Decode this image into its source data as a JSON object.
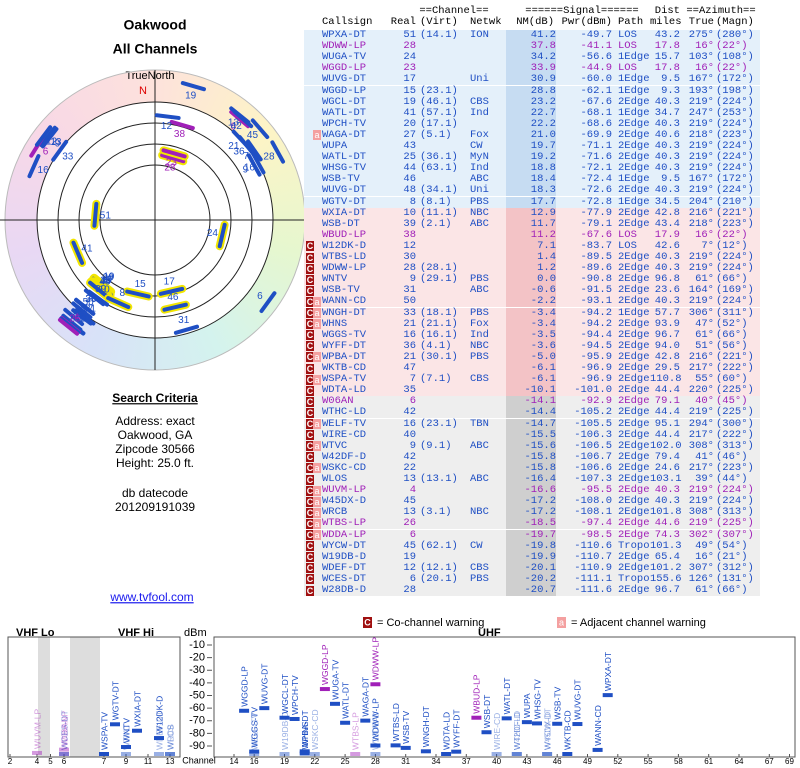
{
  "header": {
    "title": "Oakwood",
    "subtitle": "All Channels"
  },
  "radar": {
    "north_label": "TrueNorth",
    "north": "N"
  },
  "criteria": {
    "title": "Search Criteria",
    "lines": [
      "Address: exact",
      "Oakwood, GA",
      "Zipcode 30566",
      "Height: 25.0 ft."
    ],
    "datecode_label": "db datecode",
    "datecode": "201209191039"
  },
  "link": "www.tvfool.com",
  "table": {
    "groups": {
      "channel": "==Channel==",
      "signal": "======Signal======",
      "dist": "Dist",
      "azimuth": "==Azimuth=="
    },
    "columns": {
      "callsign": "Callsign",
      "real": "Real",
      "virt": "(Virt)",
      "netwk": "Netwk",
      "nm": "NM(dB)",
      "pwr": "Pwr(dBm)",
      "path": "Path",
      "dist": "miles",
      "true": "True",
      "magn": "(Magn)"
    },
    "rows": [
      {
        "callsign": "WPXA-DT",
        "real": 51,
        "virt": "(14.1)",
        "netwk": "ION",
        "nm": "41.2",
        "pwr": "-49.7",
        "path": "LOS",
        "dist": "43.2",
        "true": "275°",
        "magn": "(280°)",
        "color": "#1f4fc4"
      },
      {
        "callsign": "WDWW-LP",
        "real": 28,
        "nm": "37.8",
        "pwr": "-41.1",
        "path": "LOS",
        "dist": "17.8",
        "true": "16°",
        "magn": "(22°)",
        "color": "#a020b8"
      },
      {
        "callsign": "WUGA-TV",
        "real": 24,
        "nm": "34.2",
        "pwr": "-56.6",
        "path": "1Edge",
        "dist": "15.7",
        "true": "103°",
        "magn": "(108°)",
        "color": "#1f4fc4"
      },
      {
        "callsign": "WGGD-LP",
        "real": 23,
        "nm": "33.9",
        "pwr": "-44.9",
        "path": "LOS",
        "dist": "17.8",
        "true": "16°",
        "magn": "(22°)",
        "color": "#a020b8"
      },
      {
        "callsign": "WUVG-DT",
        "real": 17,
        "netwk": "Uni",
        "nm": "30.9",
        "pwr": "-60.0",
        "path": "1Edge",
        "dist": "9.5",
        "true": "167°",
        "magn": "(172°)",
        "color": "#1f4fc4"
      },
      {
        "callsign": "WGGD-LP",
        "real": 15,
        "virt": "(23.1)",
        "nm": "28.8",
        "pwr": "-62.1",
        "path": "1Edge",
        "dist": "9.3",
        "true": "193°",
        "magn": "(198°)",
        "color": "#1f4fc4"
      },
      {
        "callsign": "WGCL-DT",
        "real": 19,
        "virt": "(46.1)",
        "netwk": "CBS",
        "nm": "23.2",
        "pwr": "-67.6",
        "path": "2Edge",
        "dist": "40.3",
        "true": "219°",
        "magn": "(224°)",
        "color": "#1f4fc4"
      },
      {
        "callsign": "WATL-DT",
        "real": 41,
        "virt": "(57.1)",
        "netwk": "Ind",
        "nm": "22.7",
        "pwr": "-68.1",
        "path": "1Edge",
        "dist": "34.7",
        "true": "247°",
        "magn": "(253°)",
        "color": "#1f4fc4"
      },
      {
        "callsign": "WPCH-TV",
        "real": 20,
        "virt": "(17.1)",
        "nm": "22.2",
        "pwr": "-68.6",
        "path": "2Edge",
        "dist": "40.3",
        "true": "219°",
        "magn": "(224°)",
        "color": "#1f4fc4"
      },
      {
        "adj": "a",
        "callsign": "WAGA-DT",
        "real": 27,
        "virt": "(5.1)",
        "netwk": "Fox",
        "nm": "21.0",
        "pwr": "-69.9",
        "path": "2Edge",
        "dist": "40.6",
        "true": "218°",
        "magn": "(223°)",
        "color": "#1f4fc4"
      },
      {
        "callsign": "WUPA",
        "real": 43,
        "netwk": "CW",
        "nm": "19.7",
        "pwr": "-71.1",
        "path": "2Edge",
        "dist": "40.3",
        "true": "219°",
        "magn": "(224°)",
        "color": "#1f4fc4"
      },
      {
        "callsign": "WATL-DT",
        "real": 25,
        "virt": "(36.1)",
        "netwk": "MyN",
        "nm": "19.2",
        "pwr": "-71.6",
        "path": "2Edge",
        "dist": "40.3",
        "true": "219°",
        "magn": "(224°)",
        "color": "#1f4fc4"
      },
      {
        "callsign": "WHSG-TV",
        "real": 44,
        "virt": "(63.1)",
        "netwk": "Ind",
        "nm": "18.8",
        "pwr": "-72.1",
        "path": "2Edge",
        "dist": "40.3",
        "true": "219°",
        "magn": "(224°)",
        "color": "#1f4fc4"
      },
      {
        "callsign": "WSB-TV",
        "real": 46,
        "netwk": "ABC",
        "nm": "18.4",
        "pwr": "-72.4",
        "path": "1Edge",
        "dist": "9.5",
        "true": "167°",
        "magn": "(172°)",
        "color": "#1f4fc4"
      },
      {
        "callsign": "WUVG-DT",
        "real": 48,
        "virt": "(34.1)",
        "netwk": "Uni",
        "nm": "18.3",
        "pwr": "-72.6",
        "path": "2Edge",
        "dist": "40.3",
        "true": "219°",
        "magn": "(224°)",
        "color": "#1f4fc4"
      },
      {
        "callsign": "WGTV-DT",
        "real": 8,
        "virt": "(8.1)",
        "netwk": "PBS",
        "nm": "17.7",
        "pwr": "-72.8",
        "path": "1Edge",
        "dist": "34.5",
        "true": "204°",
        "magn": "(210°)",
        "color": "#1f4fc4"
      },
      {
        "callsign": "WXIA-DT",
        "real": 10,
        "virt": "(11.1)",
        "netwk": "NBC",
        "nm": "12.9",
        "pwr": "-77.9",
        "path": "2Edge",
        "dist": "42.8",
        "true": "216°",
        "magn": "(221°)",
        "color": "#1f4fc4"
      },
      {
        "callsign": "WSB-DT",
        "real": 39,
        "virt": "(2.1)",
        "netwk": "ABC",
        "nm": "11.7",
        "pwr": "-79.1",
        "path": "2Edge",
        "dist": "43.4",
        "true": "218°",
        "magn": "(223°)",
        "color": "#1f4fc4"
      },
      {
        "callsign": "WBUD-LP",
        "real": 38,
        "nm": "11.2",
        "pwr": "-67.6",
        "path": "LOS",
        "dist": "17.9",
        "true": "16°",
        "magn": "(22°)",
        "color": "#a020b8"
      },
      {
        "co": "C",
        "callsign": "W12DK-D",
        "real": 12,
        "nm": "7.1",
        "pwr": "-83.7",
        "path": "LOS",
        "dist": "42.6",
        "true": "7°",
        "magn": "(12°)",
        "color": "#1f4fc4"
      },
      {
        "co": "C",
        "callsign": "WTBS-LD",
        "real": 30,
        "nm": "1.4",
        "pwr": "-89.5",
        "path": "2Edge",
        "dist": "40.3",
        "true": "219°",
        "magn": "(224°)",
        "color": "#1f4fc4"
      },
      {
        "co": "C",
        "callsign": "WDWW-LP",
        "real": 28,
        "virt": "(28.1)",
        "nm": "1.2",
        "pwr": "-89.6",
        "path": "2Edge",
        "dist": "40.3",
        "true": "219°",
        "magn": "(224°)",
        "color": "#1f4fc4"
      },
      {
        "co": "C",
        "callsign": "WNTV",
        "real": 9,
        "virt": "(29.1)",
        "netwk": "PBS",
        "nm": "0.0",
        "pwr": "-90.8",
        "path": "2Edge",
        "dist": "96.8",
        "true": "61°",
        "magn": "(66°)",
        "color": "#1f4fc4"
      },
      {
        "co": "C",
        "callsign": "WSB-TV",
        "real": 31,
        "netwk": "ABC",
        "nm": "-0.6",
        "pwr": "-91.5",
        "path": "2Edge",
        "dist": "23.6",
        "true": "164°",
        "magn": "(169°)",
        "color": "#1f4fc4"
      },
      {
        "adj": "a",
        "co": "C",
        "callsign": "WANN-CD",
        "real": 50,
        "nm": "-2.2",
        "pwr": "-93.1",
        "path": "2Edge",
        "dist": "40.3",
        "true": "219°",
        "magn": "(224°)",
        "color": "#1f4fc4"
      },
      {
        "adj": "a",
        "co": "C",
        "callsign": "WNGH-DT",
        "real": 33,
        "virt": "(18.1)",
        "netwk": "PBS",
        "nm": "-3.4",
        "pwr": "-94.2",
        "path": "1Edge",
        "dist": "57.7",
        "true": "306°",
        "magn": "(311°)",
        "color": "#1f4fc4"
      },
      {
        "adj": "a",
        "co": "C",
        "callsign": "WHNS",
        "real": 21,
        "virt": "(21.1)",
        "netwk": "Fox",
        "nm": "-3.4",
        "pwr": "-94.2",
        "path": "2Edge",
        "dist": "93.9",
        "true": "47°",
        "magn": "(52°)",
        "color": "#1f4fc4"
      },
      {
        "co": "C",
        "callsign": "WGGS-TV",
        "real": 16,
        "virt": "(16.1)",
        "netwk": "Ind",
        "nm": "-3.5",
        "pwr": "-94.4",
        "path": "2Edge",
        "dist": "96.7",
        "true": "61°",
        "magn": "(66°)",
        "color": "#1f4fc4"
      },
      {
        "co": "C",
        "callsign": "WYFF-DT",
        "real": 36,
        "virt": "(4.1)",
        "netwk": "NBC",
        "nm": "-3.6",
        "pwr": "-94.5",
        "path": "2Edge",
        "dist": "94.0",
        "true": "51°",
        "magn": "(56°)",
        "color": "#1f4fc4"
      },
      {
        "adj": "a",
        "co": "C",
        "callsign": "WPBA-DT",
        "real": 21,
        "virt": "(30.1)",
        "netwk": "PBS",
        "nm": "-5.0",
        "pwr": "-95.9",
        "path": "2Edge",
        "dist": "42.8",
        "true": "216°",
        "magn": "(221°)",
        "color": "#1f4fc4"
      },
      {
        "co": "C",
        "callsign": "WKTB-CD",
        "real": 47,
        "nm": "-6.1",
        "pwr": "-96.9",
        "path": "2Edge",
        "dist": "29.5",
        "true": "217°",
        "magn": "(222°)",
        "color": "#1f4fc4"
      },
      {
        "adj": "a",
        "co": "C",
        "callsign": "WSPA-TV",
        "real": 7,
        "virt": "(7.1)",
        "netwk": "CBS",
        "nm": "-6.1",
        "pwr": "-96.9",
        "path": "2Edge",
        "dist": "110.8",
        "true": "55°",
        "magn": "(60°)",
        "color": "#1f4fc4"
      },
      {
        "co": "C",
        "callsign": "WDTA-LD",
        "real": 35,
        "nm": "-10.1",
        "pwr": "-101.0",
        "path": "2Edge",
        "dist": "44.4",
        "true": "220°",
        "magn": "(225°)",
        "color": "#1f4fc4"
      },
      {
        "co": "C",
        "callsign": "W06AN",
        "real": 6,
        "nm": "-14.1",
        "pwr": "-92.9",
        "path": "2Edge",
        "dist": "79.1",
        "true": "40°",
        "magn": "(45°)",
        "color": "#a020b8"
      },
      {
        "co": "C",
        "callsign": "WTHC-LD",
        "real": 42,
        "nm": "-14.4",
        "pwr": "-105.2",
        "path": "2Edge",
        "dist": "44.4",
        "true": "219°",
        "magn": "(225°)",
        "color": "#1f4fc4"
      },
      {
        "adj": "a",
        "co": "C",
        "callsign": "WELF-TV",
        "real": 16,
        "virt": "(23.1)",
        "netwk": "TBN",
        "nm": "-14.7",
        "pwr": "-105.5",
        "path": "2Edge",
        "dist": "95.1",
        "true": "294°",
        "magn": "(300°)",
        "color": "#1f4fc4"
      },
      {
        "co": "C",
        "callsign": "WIRE-CD",
        "real": 40,
        "nm": "-15.5",
        "pwr": "-106.3",
        "path": "2Edge",
        "dist": "44.4",
        "true": "217°",
        "magn": "(222°)",
        "color": "#1f4fc4"
      },
      {
        "adj": "a",
        "co": "C",
        "callsign": "WTVC",
        "real": 9,
        "virt": "(9.1)",
        "netwk": "ABC",
        "nm": "-15.6",
        "pwr": "-106.5",
        "path": "2Edge",
        "dist": "102.0",
        "true": "308°",
        "magn": "(313°)",
        "color": "#1f4fc4"
      },
      {
        "co": "C",
        "callsign": "W42DF-D",
        "real": 42,
        "nm": "-15.8",
        "pwr": "-106.7",
        "path": "2Edge",
        "dist": "79.4",
        "true": "41°",
        "magn": "(46°)",
        "color": "#1f4fc4"
      },
      {
        "adj": "a",
        "co": "C",
        "callsign": "WSKC-CD",
        "real": 22,
        "nm": "-15.8",
        "pwr": "-106.6",
        "path": "2Edge",
        "dist": "24.6",
        "true": "217°",
        "magn": "(223°)",
        "color": "#1f4fc4"
      },
      {
        "co": "C",
        "callsign": "WLOS",
        "real": 13,
        "virt": "(13.1)",
        "netwk": "ABC",
        "nm": "-16.4",
        "pwr": "-107.3",
        "path": "2Edge",
        "dist": "103.1",
        "true": "39°",
        "magn": "(44°)",
        "color": "#1f4fc4"
      },
      {
        "adj": "a",
        "co": "C",
        "callsign": "WUVM-LP",
        "real": 4,
        "nm": "-16.6",
        "pwr": "-95.5",
        "path": "2Edge",
        "dist": "40.3",
        "true": "219°",
        "magn": "(224°)",
        "color": "#a020b8"
      },
      {
        "adj": "a",
        "co": "C",
        "callsign": "W45DX-D",
        "real": 45,
        "nm": "-17.2",
        "pwr": "-108.0",
        "path": "2Edge",
        "dist": "40.3",
        "true": "219°",
        "magn": "(224°)",
        "color": "#1f4fc4"
      },
      {
        "adj": "a",
        "co": "C",
        "callsign": "WRCB",
        "real": 13,
        "virt": "(3.1)",
        "netwk": "NBC",
        "nm": "-17.2",
        "pwr": "-108.1",
        "path": "2Edge",
        "dist": "101.8",
        "true": "308°",
        "magn": "(313°)",
        "color": "#1f4fc4"
      },
      {
        "adj": "a",
        "co": "C",
        "callsign": "WTBS-LP",
        "real": 26,
        "nm": "-18.5",
        "pwr": "-97.4",
        "path": "2Edge",
        "dist": "44.6",
        "true": "219°",
        "magn": "(225°)",
        "color": "#a020b8"
      },
      {
        "adj": "a",
        "co": "C",
        "callsign": "WDDA-LP",
        "real": 6,
        "nm": "-19.7",
        "pwr": "-98.5",
        "path": "2Edge",
        "dist": "74.3",
        "true": "302°",
        "magn": "(307°)",
        "color": "#a020b8"
      },
      {
        "co": "C",
        "callsign": "WYCW-DT",
        "real": 45,
        "virt": "(62.1)",
        "netwk": "CW",
        "nm": "-19.8",
        "pwr": "-110.6",
        "path": "Tropo",
        "dist": "101.3",
        "true": "49°",
        "magn": "(54°)",
        "color": "#1f4fc4"
      },
      {
        "co": "C",
        "callsign": "W19DB-D",
        "real": 19,
        "nm": "-19.9",
        "pwr": "-110.7",
        "path": "2Edge",
        "dist": "65.4",
        "true": "16°",
        "magn": "(21°)",
        "color": "#1f4fc4"
      },
      {
        "co": "C",
        "callsign": "WDEF-DT",
        "real": 12,
        "virt": "(12.1)",
        "netwk": "CBS",
        "nm": "-20.1",
        "pwr": "-110.9",
        "path": "2Edge",
        "dist": "101.2",
        "true": "307°",
        "magn": "(312°)",
        "color": "#1f4fc4"
      },
      {
        "co": "C",
        "callsign": "WCES-DT",
        "real": 6,
        "virt": "(20.1)",
        "netwk": "PBS",
        "nm": "-20.2",
        "pwr": "-111.1",
        "path": "Tropo",
        "dist": "155.6",
        "true": "126°",
        "magn": "(131°)",
        "color": "#1f4fc4"
      },
      {
        "co": "C",
        "callsign": "W28DB-D",
        "real": 28,
        "nm": "-20.7",
        "pwr": "-111.6",
        "path": "2Edge",
        "dist": "96.7",
        "true": "61°",
        "magn": "(66°)",
        "color": "#1f4fc4"
      }
    ]
  },
  "legend": {
    "co_icon": "C",
    "co_text": "= Co-channel warning",
    "adj_icon": "a",
    "adj_text": "= Adjacent channel warning"
  },
  "spectrum": {
    "vhf_lo": "VHF Lo",
    "vhf_hi": "VHF Hi",
    "uhf": "UHF",
    "unit": "dBm",
    "channel_label": "Channel",
    "yticks": [
      -10,
      -20,
      -30,
      -40,
      -50,
      -60,
      -70,
      -80,
      -90
    ],
    "vhf_xticks": [
      2,
      4,
      5,
      6,
      7,
      9,
      11,
      13
    ],
    "uhf_xticks": [
      14,
      16,
      19,
      22,
      25,
      28,
      31,
      34,
      37,
      40,
      43,
      46,
      49,
      52,
      55,
      58,
      61,
      64,
      67,
      69
    ]
  }
}
